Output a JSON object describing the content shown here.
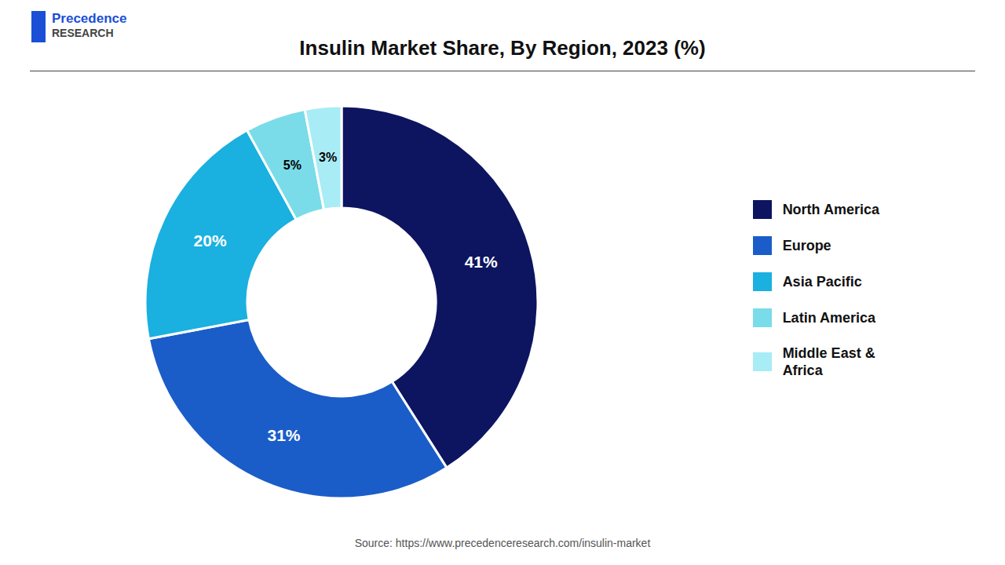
{
  "chart_data": {
    "type": "pie",
    "title": "Insulin Market Share, By Region, 2023 (%)",
    "categories": [
      "North America",
      "Europe",
      "Asia Pacific",
      "Latin America",
      "Middle East &\nAfrica"
    ],
    "values": [
      41,
      31,
      20,
      5,
      3
    ],
    "value_labels": [
      "41%",
      "31%",
      "20%",
      "5%",
      "3%"
    ],
    "colors": [
      "#0d1560",
      "#1a5dc8",
      "#1ab0e0",
      "#7adce8",
      "#a8ecf5"
    ],
    "data_labels": true,
    "legend": "right",
    "annotations": [
      "Source: https://www.precedenceresearch.com/insulin-market",
      "Precedence",
      "RESEARCH"
    ]
  }
}
